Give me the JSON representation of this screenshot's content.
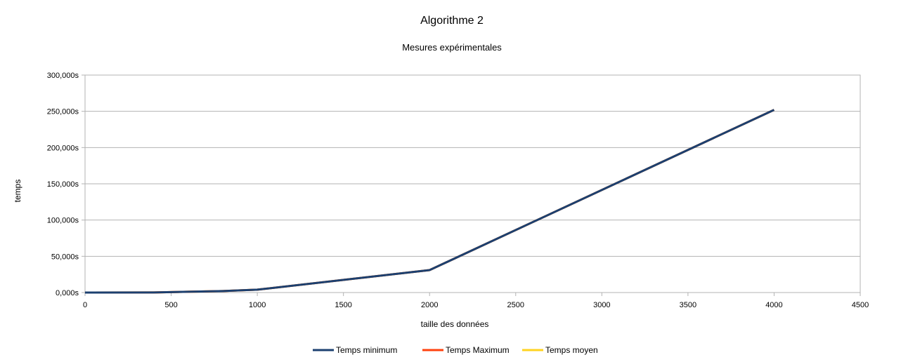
{
  "chart_data": {
    "type": "line",
    "title": "Algorithme 2",
    "subtitle": "Mesures expérimentales",
    "xlabel": "taille des données",
    "ylabel": "temps",
    "xlim": [
      0,
      4500
    ],
    "ylim": [
      0,
      300
    ],
    "x_ticks": [
      0,
      500,
      1000,
      1500,
      2000,
      2500,
      3000,
      3500,
      4000,
      4500
    ],
    "y_ticks": [
      0,
      50,
      100,
      150,
      200,
      250,
      300
    ],
    "y_tick_labels": [
      "0,000s",
      "50,000s",
      "100,000s",
      "150,000s",
      "200,000s",
      "250,000s",
      "300,000s"
    ],
    "grid": "horizontal",
    "legend_position": "bottom",
    "x": [
      0,
      400,
      800,
      1000,
      2000,
      4000
    ],
    "series": [
      {
        "name": "Temps minimum",
        "color": "#1c4070",
        "values": [
          0,
          0.1,
          2,
          4,
          31,
          252
        ]
      },
      {
        "name": "Temps Maximum",
        "color": "#ff420e",
        "values": [
          0,
          0.1,
          2,
          4,
          31,
          252
        ]
      },
      {
        "name": "Temps moyen",
        "color": "#ffd320",
        "values": [
          0,
          0.1,
          2,
          4,
          31,
          252
        ]
      }
    ]
  }
}
